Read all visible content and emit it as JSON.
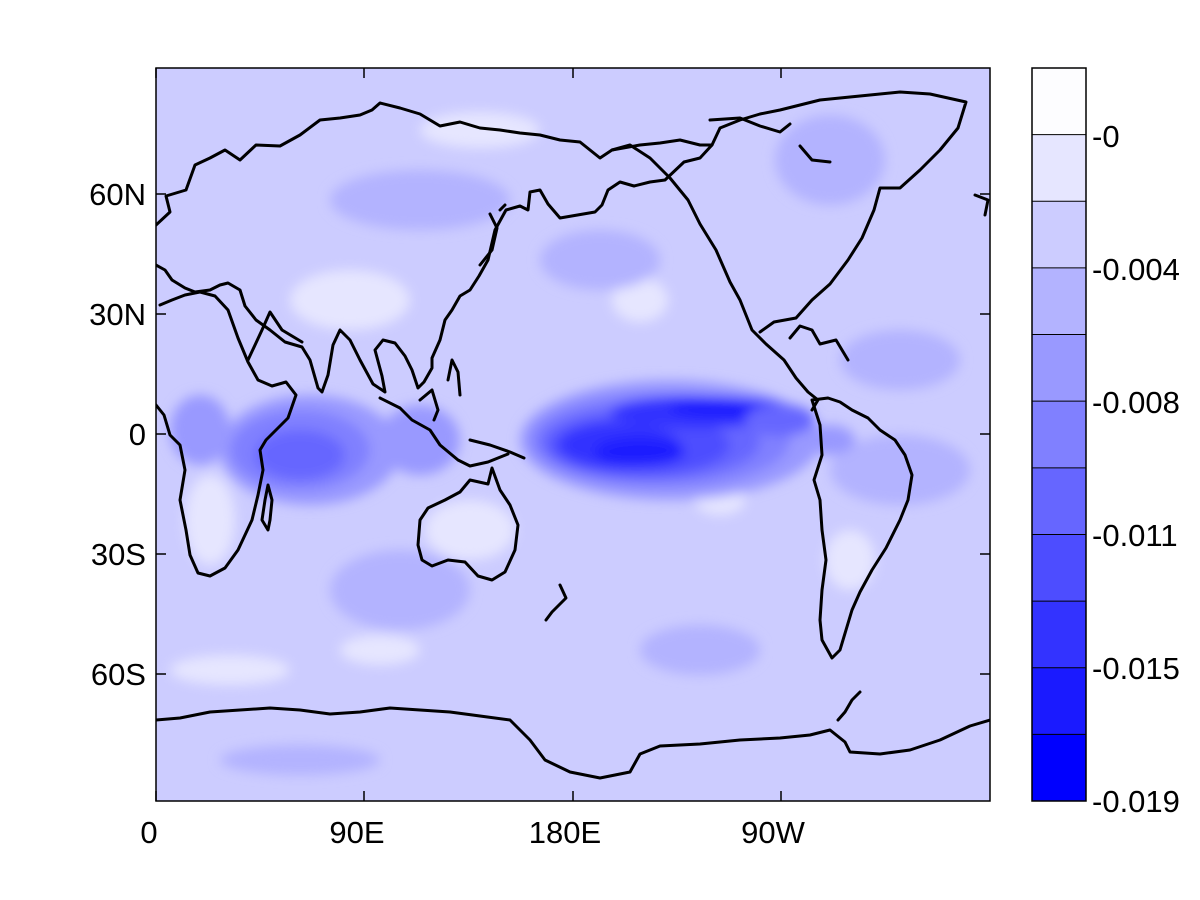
{
  "map": {
    "x_ticks": [
      "0",
      "90E",
      "180E",
      "90W"
    ],
    "y_ticks": [
      "60N",
      "30N",
      "0",
      "30S",
      "60S"
    ],
    "background_color": "#ccccff",
    "coast_color": "#000000"
  },
  "colorbar": {
    "labels": [
      "-0",
      "-0.004",
      "-0.008",
      "-0.011",
      "-0.015",
      "-0.019"
    ],
    "colors": [
      "#fdfdff",
      "#e6e6ff",
      "#ccccff",
      "#b3b3ff",
      "#9999ff",
      "#8080ff",
      "#6666ff",
      "#4d4dff",
      "#3333ff",
      "#1a1aff",
      "#0000ff"
    ]
  }
}
